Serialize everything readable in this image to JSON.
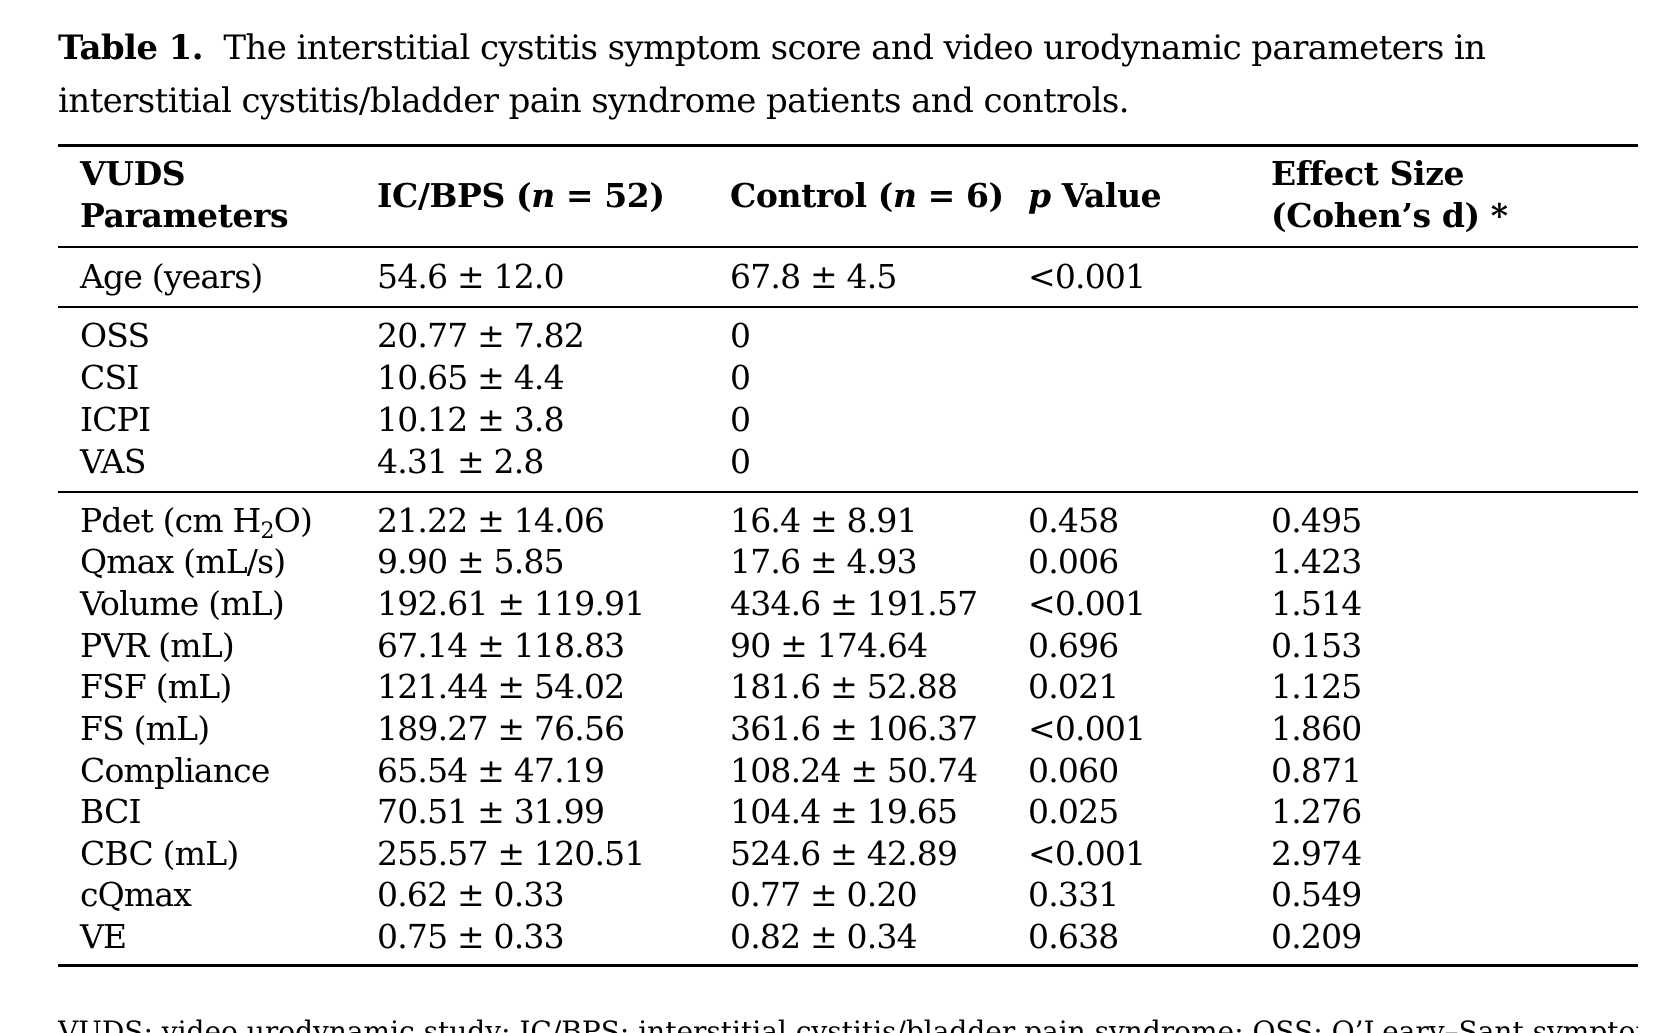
{
  "caption": {
    "label": "Table 1.",
    "text": "The interstitial cystitis symptom score and video urodynamic parameters in interstitial cystitis/bladder pain syndrome patients and controls."
  },
  "header": {
    "col1_line1": "VUDS",
    "col1_line2": "Parameters",
    "col2_prefix": "IC/BPS (",
    "col2_n": "n",
    "col2_suffix": " = 52)",
    "col3_prefix": "Control (",
    "col3_n": "n",
    "col3_suffix": " = 6)",
    "col4_p": "p",
    "col4_suffix": " Value",
    "col5_line1": "Effect Size",
    "col5_line2": "(Cohen’s d) *"
  },
  "groups": [
    {
      "rows": [
        {
          "param": "Age (years)",
          "icbps": "54.6 ± 12.0",
          "control": "67.8 ± 4.5",
          "p": "<0.001",
          "effect": ""
        }
      ]
    },
    {
      "rows": [
        {
          "param": "OSS",
          "icbps": "20.77 ± 7.82",
          "control": "0",
          "p": "",
          "effect": ""
        },
        {
          "param": "CSI",
          "icbps": "10.65 ± 4.4",
          "control": "0",
          "p": "",
          "effect": ""
        },
        {
          "param": "ICPI",
          "icbps": "10.12 ± 3.8",
          "control": "0",
          "p": "",
          "effect": ""
        },
        {
          "param": "VAS",
          "icbps": "4.31 ± 2.8",
          "control": "0",
          "p": "",
          "effect": ""
        }
      ]
    },
    {
      "rows": [
        {
          "param": "Pdet (cm H",
          "param_sub": "2",
          "param_tail": "O)",
          "icbps": "21.22 ± 14.06",
          "control": "16.4 ± 8.91",
          "p": "0.458",
          "effect": "0.495"
        },
        {
          "param": "Qmax (mL/s)",
          "icbps": "9.90 ± 5.85",
          "control": "17.6 ± 4.93",
          "p": "0.006",
          "effect": "1.423"
        },
        {
          "param": "Volume (mL)",
          "icbps": "192.61 ± 119.91",
          "control": "434.6 ± 191.57",
          "p": "<0.001",
          "effect": "1.514"
        },
        {
          "param": "PVR (mL)",
          "icbps": "67.14 ± 118.83",
          "control": "90 ± 174.64",
          "p": "0.696",
          "effect": "0.153"
        },
        {
          "param": "FSF (mL)",
          "icbps": "121.44 ± 54.02",
          "control": "181.6 ± 52.88",
          "p": "0.021",
          "effect": "1.125"
        },
        {
          "param": "FS (mL)",
          "icbps": "189.27 ± 76.56",
          "control": "361.6 ± 106.37",
          "p": "<0.001",
          "effect": "1.860"
        },
        {
          "param": "Compliance",
          "icbps": "65.54 ± 47.19",
          "control": "108.24 ± 50.74",
          "p": "0.060",
          "effect": "0.871"
        },
        {
          "param": "BCI",
          "icbps": "70.51 ± 31.99",
          "control": "104.4 ± 19.65",
          "p": "0.025",
          "effect": "1.276"
        },
        {
          "param": "CBC (mL)",
          "icbps": "255.57 ± 120.51",
          "control": "524.6 ± 42.89",
          "p": "<0.001",
          "effect": "2.974"
        },
        {
          "param": "cQmax",
          "icbps": "0.62 ± 0.33",
          "control": "0.77 ± 0.20",
          "p": "0.331",
          "effect": "0.549"
        },
        {
          "param": "VE",
          "icbps": "0.75 ± 0.33",
          "control": "0.82 ± 0.34",
          "p": "0.638",
          "effect": "0.209"
        }
      ]
    }
  ],
  "footnote": "VUDS: video urodynamic study; IC/BPS: interstitial cystitis/bladder pain syndrome; OSS: O’Leary–Sant symptom"
}
